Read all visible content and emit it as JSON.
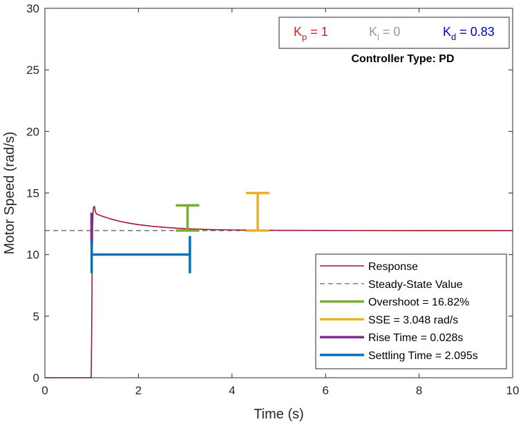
{
  "chart_data": {
    "type": "line",
    "xlabel": "Time (s)",
    "ylabel": "Motor Speed (rad/s)",
    "xlim": [
      0,
      10
    ],
    "ylim": [
      0,
      30
    ],
    "xticks": [
      "0",
      "2",
      "4",
      "6",
      "8",
      "10"
    ],
    "yticks": [
      "0",
      "5",
      "10",
      "15",
      "20",
      "25",
      "30"
    ],
    "grid": false,
    "legend_position": "bottom-right",
    "series": [
      {
        "name": "Response",
        "color": "#A2142F",
        "style": "solid",
        "x": [
          0,
          0.99,
          1.0,
          1.01,
          1.02,
          1.028,
          1.04,
          1.06,
          1.08,
          1.1,
          1.2,
          1.4,
          1.6,
          1.8,
          2.0,
          2.3,
          2.6,
          3.0,
          3.5,
          4.0,
          5.0,
          6.0,
          8.0,
          10.0
        ],
        "y": [
          0,
          0,
          3.5,
          9.0,
          12.4,
          13.3,
          13.85,
          13.9,
          13.5,
          13.3,
          13.15,
          12.9,
          12.7,
          12.55,
          12.43,
          12.3,
          12.2,
          12.1,
          12.03,
          12.0,
          11.97,
          11.96,
          11.95,
          11.95
        ]
      },
      {
        "name": "Steady-State Value",
        "color": "#555555",
        "style": "dashed",
        "x": [
          0,
          10
        ],
        "y": [
          11.95,
          11.95
        ]
      }
    ],
    "annotations": [
      {
        "name": "Overshoot = 16.82%",
        "color": "#77AC30",
        "kind": "vertical-bracket",
        "x": 3.05,
        "y_range": [
          11.95,
          14.0
        ]
      },
      {
        "name": "SSE = 3.048 rad/s",
        "color": "#EDB120",
        "kind": "vertical-bracket",
        "x": 4.55,
        "y_range": [
          11.95,
          15.0
        ]
      },
      {
        "name": "Rise Time = 0.028s",
        "color": "#7E2F8E",
        "kind": "vertical-bar",
        "x": 1.0,
        "y_range": [
          10.8,
          13.4
        ]
      },
      {
        "name": "Settling Time = 2.095s",
        "color": "#0072BD",
        "kind": "horizontal-bracket",
        "y": 10.0,
        "x_range": [
          1.0,
          3.1
        ]
      }
    ],
    "gains": {
      "kp": {
        "letter": "K",
        "sub": "p",
        "value": " = 1",
        "color": "#E41A1C"
      },
      "ki": {
        "letter": "K",
        "sub": "i",
        "value": " = 0",
        "color": "#999999"
      },
      "kd": {
        "letter": "K",
        "sub": "d",
        "value": " = 0.83",
        "color": "#0000CC"
      }
    },
    "controller_type": "Controller Type: PD"
  }
}
